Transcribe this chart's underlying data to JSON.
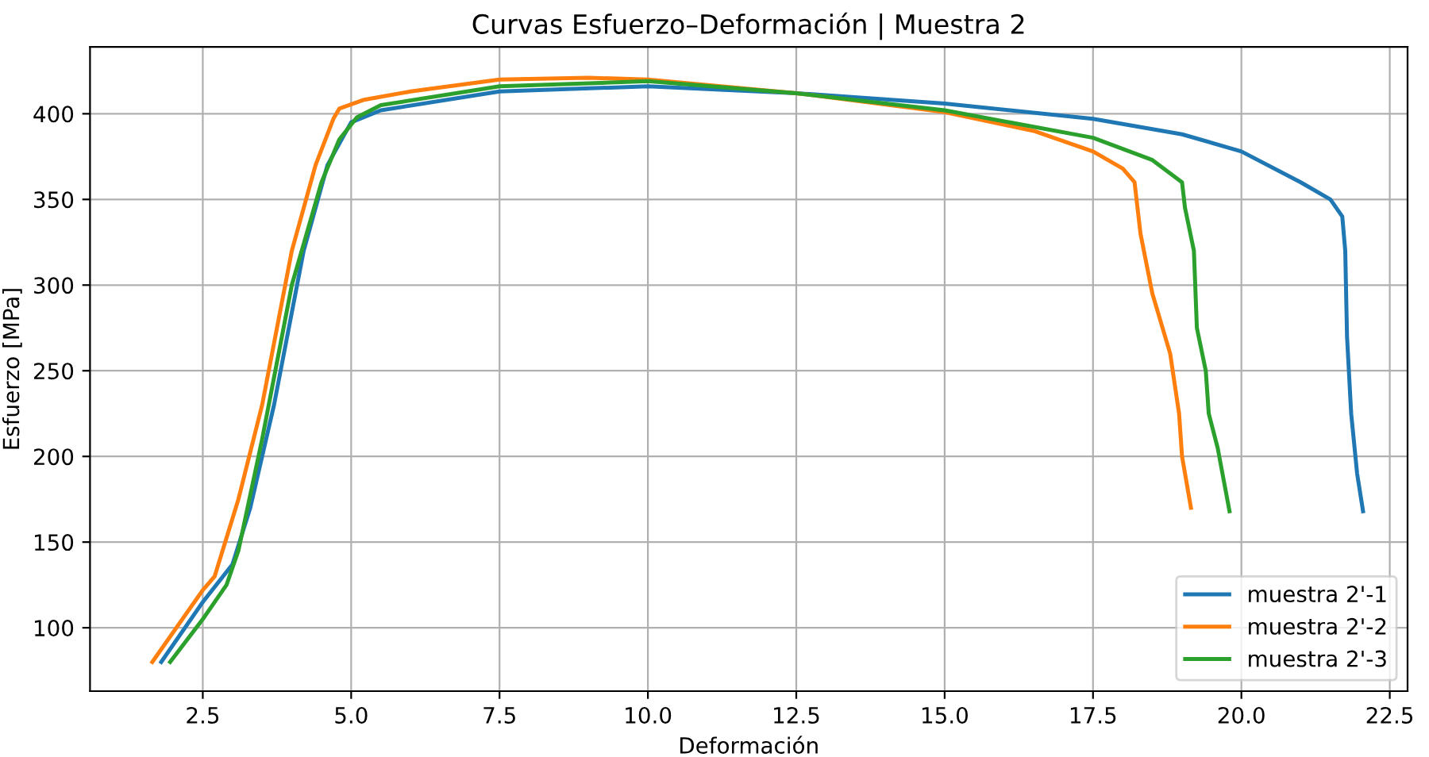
{
  "chart_data": {
    "type": "line",
    "title": "Curvas Esfuerzo–Deformación | Muestra 2",
    "xlabel": "Deformación",
    "ylabel": "Esfuerzo [MPa]",
    "xlim": [
      0.6,
      22.8
    ],
    "ylim": [
      63,
      439
    ],
    "xticks": [
      {
        "value": 2.5,
        "label": "2.5"
      },
      {
        "value": 5,
        "label": "5.0"
      },
      {
        "value": 7.5,
        "label": "7.5"
      },
      {
        "value": 10,
        "label": "10.0"
      },
      {
        "value": 12.5,
        "label": "12.5"
      },
      {
        "value": 15,
        "label": "15.0"
      },
      {
        "value": 17.5,
        "label": "17.5"
      },
      {
        "value": 20,
        "label": "20.0"
      },
      {
        "value": 22.5,
        "label": "22.5"
      }
    ],
    "yticks": [
      100,
      150,
      200,
      250,
      300,
      350,
      400
    ],
    "grid": true,
    "legend": "bottom right",
    "series": [
      {
        "name": "muestra 2'-1",
        "color": "#1f77b4",
        "x": [
          1.8,
          2.5,
          3.0,
          3.3,
          3.7,
          4.2,
          4.6,
          5.0,
          5.5,
          7.5,
          10,
          12.5,
          15,
          17.5,
          19,
          20,
          21,
          21.5,
          21.7,
          21.75,
          21.78,
          21.85,
          21.95,
          22.05
        ],
        "values": [
          80,
          115,
          137,
          170,
          230,
          320,
          370,
          395,
          402,
          413,
          416,
          412,
          406,
          397,
          388,
          378,
          360,
          350,
          340,
          320,
          270,
          225,
          190,
          168
        ]
      },
      {
        "name": "muestra 2'-2",
        "color": "#ff7f0e",
        "x": [
          1.65,
          2.5,
          2.7,
          3.1,
          3.5,
          4.0,
          4.4,
          4.7,
          4.8,
          5.2,
          6,
          7.5,
          9,
          10,
          12.5,
          15,
          16.5,
          17.5,
          18.0,
          18.2,
          18.3,
          18.5,
          18.8,
          18.95,
          19.0,
          19.15
        ],
        "values": [
          80,
          122,
          130,
          175,
          230,
          320,
          370,
          397,
          403,
          408,
          413,
          420,
          421,
          420,
          412,
          401,
          390,
          378,
          368,
          360,
          330,
          295,
          260,
          225,
          200,
          170
        ]
      },
      {
        "name": "muestra 2'-3",
        "color": "#2ca02c",
        "x": [
          1.95,
          2.5,
          2.9,
          3.1,
          3.5,
          4.0,
          4.5,
          4.8,
          5.1,
          5.5,
          7.5,
          10,
          12.5,
          15,
          17.5,
          18.5,
          19.0,
          19.05,
          19.2,
          19.25,
          19.4,
          19.45,
          19.6,
          19.8
        ],
        "values": [
          80,
          105,
          125,
          145,
          210,
          300,
          360,
          385,
          398,
          405,
          416,
          419,
          412,
          402,
          386,
          373,
          360,
          345,
          320,
          275,
          250,
          225,
          205,
          168
        ]
      }
    ]
  }
}
